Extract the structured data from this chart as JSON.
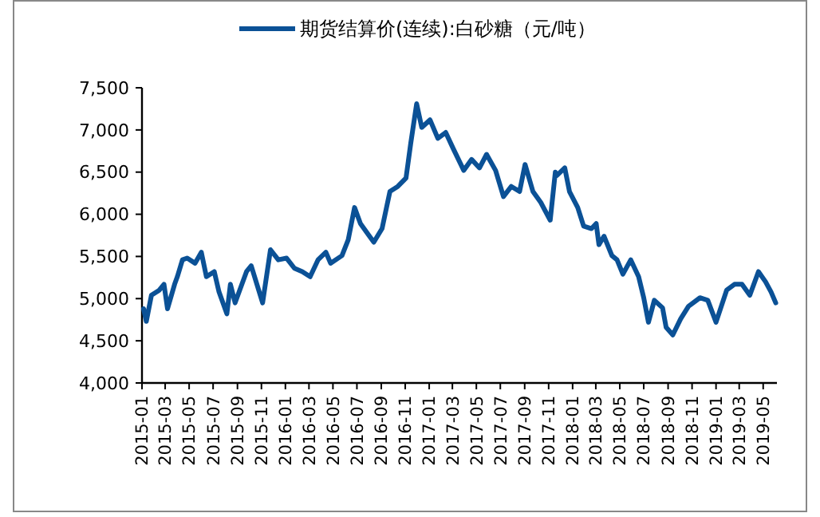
{
  "chart_data": {
    "type": "line",
    "legend": "top",
    "grid": false,
    "marker": "none",
    "line_style": "solid",
    "xlim": [
      "2015-01-01",
      "2019-06-05"
    ],
    "xticks": [
      "2015-01",
      "2015-03",
      "2015-05",
      "2015-07",
      "2015-09",
      "2015-11",
      "2016-01",
      "2016-03",
      "2016-05",
      "2016-07",
      "2016-09",
      "2016-11",
      "2017-01",
      "2017-03",
      "2017-05",
      "2017-07",
      "2017-09",
      "2017-11",
      "2018-01",
      "2018-03",
      "2018-05",
      "2018-07",
      "2018-09",
      "2018-11",
      "2019-01",
      "2019-03",
      "2019-05"
    ],
    "ylim": [
      4000,
      7500
    ],
    "yticks": [
      {
        "value": 4000,
        "label": "4,000"
      },
      {
        "value": 4500,
        "label": "4,500"
      },
      {
        "value": 5000,
        "label": "5,000"
      },
      {
        "value": 5500,
        "label": "5,500"
      },
      {
        "value": 6000,
        "label": "6,000"
      },
      {
        "value": 6500,
        "label": "6,500"
      },
      {
        "value": 7000,
        "label": "7,000"
      },
      {
        "value": 7500,
        "label": "7,500"
      }
    ],
    "x": [
      "2015-01-05",
      "2015-01-12",
      "2015-01-25",
      "2015-02-14",
      "2015-02-26",
      "2015-03-07",
      "2015-03-25",
      "2015-04-01",
      "2015-04-14",
      "2015-04-26",
      "2015-05-16",
      "2015-06-01",
      "2015-06-14",
      "2015-07-04",
      "2015-07-16",
      "2015-08-05",
      "2015-08-14",
      "2015-08-26",
      "2015-09-24",
      "2015-10-06",
      "2015-11-04",
      "2015-11-24",
      "2015-12-14",
      "2016-01-04",
      "2016-01-24",
      "2016-02-13",
      "2016-03-04",
      "2016-03-24",
      "2016-04-13",
      "2016-04-25",
      "2016-05-24",
      "2016-06-09",
      "2016-06-25",
      "2016-07-10",
      "2016-07-30",
      "2016-08-13",
      "2016-09-03",
      "2016-09-23",
      "2016-10-13",
      "2016-11-03",
      "2016-11-15",
      "2016-11-30",
      "2016-12-13",
      "2017-01-03",
      "2017-01-23",
      "2017-02-12",
      "2017-03-03",
      "2017-03-30",
      "2017-04-19",
      "2017-05-09",
      "2017-05-27",
      "2017-06-19",
      "2017-07-09",
      "2017-07-29",
      "2017-08-19",
      "2017-09-02",
      "2017-09-22",
      "2017-10-12",
      "2017-11-05",
      "2017-11-18",
      "2017-11-22",
      "2017-12-12",
      "2017-12-24",
      "2018-01-14",
      "2018-01-29",
      "2018-02-18",
      "2018-03-02",
      "2018-03-09",
      "2018-03-22",
      "2018-04-11",
      "2018-04-24",
      "2018-05-09",
      "2018-05-29",
      "2018-06-18",
      "2018-07-01",
      "2018-07-13",
      "2018-07-28",
      "2018-08-18",
      "2018-08-27",
      "2018-09-13",
      "2018-10-03",
      "2018-10-23",
      "2018-11-21",
      "2018-12-11",
      "2019-01-01",
      "2019-01-28",
      "2019-02-17",
      "2019-03-08",
      "2019-03-28",
      "2019-04-19",
      "2019-05-07",
      "2019-05-21",
      "2019-06-02"
    ],
    "series": [
      {
        "name": "期货结算价(连续):白砂糖（元/吨）",
        "color": "#0b5196",
        "values": [
          4880,
          4730,
          5040,
          5100,
          5170,
          4880,
          5170,
          5260,
          5460,
          5480,
          5420,
          5550,
          5260,
          5320,
          5080,
          4820,
          5170,
          4950,
          5320,
          5390,
          4950,
          5580,
          5460,
          5480,
          5360,
          5320,
          5260,
          5460,
          5550,
          5420,
          5510,
          5700,
          6080,
          5890,
          5760,
          5670,
          5830,
          6270,
          6330,
          6430,
          6840,
          7310,
          7030,
          7120,
          6900,
          6970,
          6780,
          6520,
          6650,
          6550,
          6710,
          6520,
          6210,
          6330,
          6270,
          6590,
          6270,
          6140,
          5930,
          6500,
          6460,
          6550,
          6270,
          6080,
          5860,
          5830,
          5890,
          5640,
          5740,
          5510,
          5460,
          5290,
          5460,
          5260,
          5010,
          4720,
          4980,
          4890,
          4660,
          4570,
          4760,
          4910,
          5010,
          4980,
          4720,
          5100,
          5170,
          5170,
          5040,
          5320,
          5200,
          5080,
          4950
        ]
      }
    ]
  }
}
